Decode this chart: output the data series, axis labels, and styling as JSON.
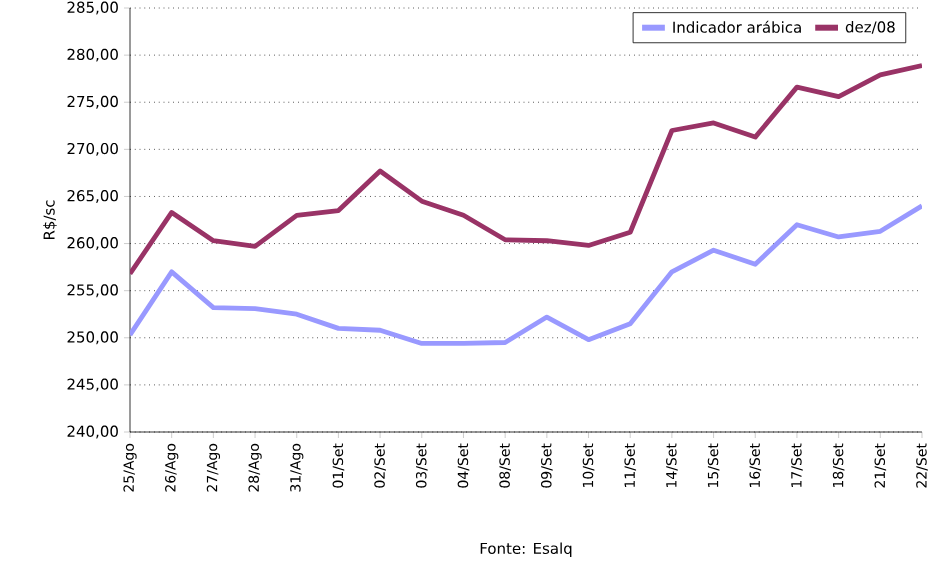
{
  "chart_data": {
    "type": "line",
    "ylabel": "R$/sc",
    "categories": [
      "25/Ago",
      "26/Ago",
      "27/Ago",
      "28/Ago",
      "31/Ago",
      "01/Set",
      "02/Set",
      "03/Set",
      "04/Set",
      "08/Set",
      "09/Set",
      "10/Set",
      "11/Set",
      "14/Set",
      "15/Set",
      "16/Set",
      "17/Set",
      "18/Set",
      "21/Set",
      "22/Set"
    ],
    "series": [
      {
        "name": "Indicador arábica",
        "color": "#9999ff",
        "values": [
          250.3,
          257.0,
          253.2,
          253.1,
          252.5,
          251.0,
          250.8,
          249.4,
          249.4,
          249.5,
          252.2,
          249.8,
          251.5,
          257.0,
          259.3,
          257.8,
          262.0,
          260.7,
          261.3,
          264.0
        ]
      },
      {
        "name": "dez/08",
        "color": "#993366",
        "values": [
          256.8,
          263.3,
          260.3,
          259.7,
          263.0,
          263.5,
          267.7,
          264.5,
          263.0,
          260.4,
          260.3,
          259.8,
          261.2,
          272.0,
          272.8,
          271.3,
          276.6,
          275.6,
          277.9,
          278.9
        ]
      }
    ],
    "ylim": [
      240,
      285
    ],
    "yticks": [
      {
        "value": 240,
        "label": "240,00"
      },
      {
        "value": 245,
        "label": "245,00"
      },
      {
        "value": 250,
        "label": "250,00"
      },
      {
        "value": 255,
        "label": "255,00"
      },
      {
        "value": 260,
        "label": "260,00"
      },
      {
        "value": 265,
        "label": "265,00"
      },
      {
        "value": 270,
        "label": "270,00"
      },
      {
        "value": 275,
        "label": "275,00"
      },
      {
        "value": 280,
        "label": "280,00"
      },
      {
        "value": 285,
        "label": "285,00"
      }
    ],
    "grid": "y",
    "legend": "top right",
    "marker": "none",
    "line_style": "solid",
    "annotations": [
      "Fonte: Esalq"
    ]
  }
}
